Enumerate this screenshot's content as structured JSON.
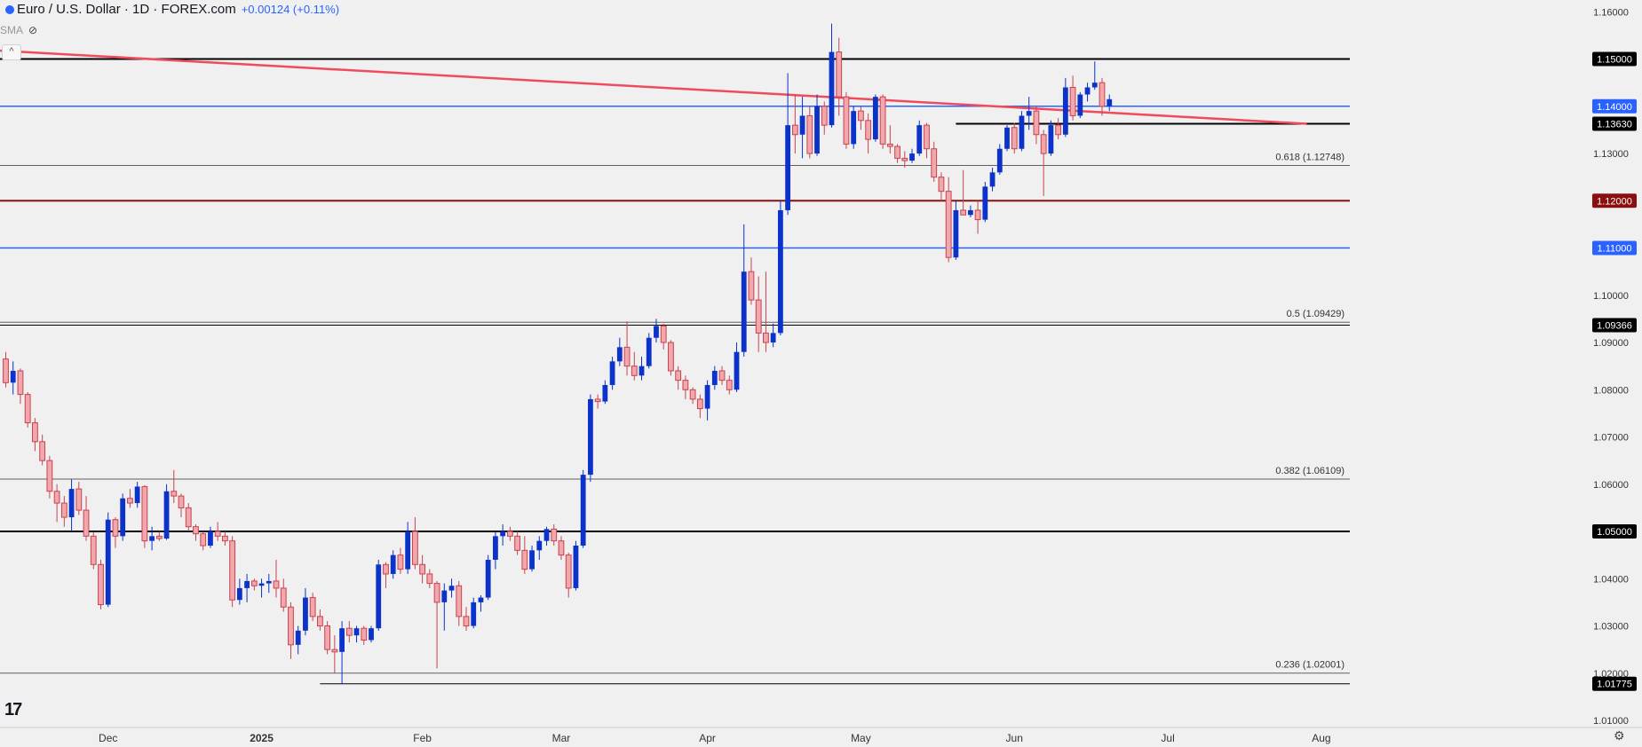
{
  "header": {
    "symbol": "Euro / U.S. Dollar · 1D · FOREX.com",
    "change": "+0.00124 (+0.11%)",
    "indicator": "SMA",
    "collapse_glyph": "^"
  },
  "colors": {
    "up": "#0b33c9",
    "down_fill": "#f2a7ad",
    "down_stroke": "#c8434f",
    "trendline": "#f04b5c",
    "black_level": "#000000",
    "blue_level": "#2962ff",
    "maroon_level": "#8b0f0f",
    "fib": "#606060",
    "background": "#f0f0f0"
  },
  "chart_data": {
    "type": "candlestick",
    "title": "Euro / U.S. Dollar · 1D · FOREX.com",
    "ylim": [
      1.0085,
      1.1625
    ],
    "x_ticks": [
      {
        "label": "Dec",
        "index": 14
      },
      {
        "label": "2025",
        "index": 35
      },
      {
        "label": "Feb",
        "index": 57
      },
      {
        "label": "Mar",
        "index": 76
      },
      {
        "label": "Apr",
        "index": 96
      },
      {
        "label": "May",
        "index": 117
      },
      {
        "label": "Jun",
        "index": 138
      },
      {
        "label": "Jul",
        "index": 159
      },
      {
        "label": "Aug",
        "index": 180
      }
    ],
    "y_ticks": [
      "1.16000",
      "1.13000",
      "1.10000",
      "1.09000",
      "1.08000",
      "1.07000",
      "1.06000",
      "1.04000",
      "1.03000",
      "1.02000",
      "1.01000"
    ],
    "y_tick_values": [
      1.16,
      1.13,
      1.1,
      1.09,
      1.08,
      1.07,
      1.06,
      1.04,
      1.03,
      1.02,
      1.01
    ],
    "levels": [
      {
        "value": 1.15,
        "label": "1.15000",
        "kind": "black",
        "start_index": -1
      },
      {
        "value": 1.14,
        "label": "1.14000",
        "kind": "blue",
        "start_index": -1
      },
      {
        "value": 1.1363,
        "label": "1.13630",
        "kind": "black",
        "start_index": 130
      },
      {
        "value": 1.12,
        "label": "1.12000",
        "kind": "maroon",
        "start_index": -1
      },
      {
        "value": 1.11,
        "label": "1.11000",
        "kind": "blue",
        "start_index": -1
      },
      {
        "value": 1.09366,
        "label": "1.09366",
        "kind": "black-thin",
        "start_index": -1
      },
      {
        "value": 1.05,
        "label": "1.05000",
        "kind": "black",
        "start_index": -1
      },
      {
        "value": 1.01775,
        "label": "1.01775",
        "kind": "black-thin",
        "start_index": 43
      }
    ],
    "fib_levels": [
      {
        "value": 1.12748,
        "label": "0.618 (1.12748)"
      },
      {
        "value": 1.09429,
        "label": "0.5 (1.09429)"
      },
      {
        "value": 1.06109,
        "label": "0.382 (1.06109)"
      },
      {
        "value": 1.02001,
        "label": "0.236 (1.02001)"
      }
    ],
    "trendline": {
      "start_index": -1,
      "start_value": 1.1518,
      "end_index": 178,
      "end_value": 1.1363
    },
    "candles": [
      [
        1.0865,
        1.088,
        1.0805,
        1.0815
      ],
      [
        1.0815,
        1.086,
        1.079,
        1.084
      ],
      [
        1.084,
        1.0845,
        1.077,
        1.079
      ],
      [
        1.079,
        1.0795,
        1.072,
        1.073
      ],
      [
        1.073,
        1.074,
        1.067,
        1.069
      ],
      [
        1.069,
        1.0705,
        1.064,
        1.065
      ],
      [
        1.065,
        1.066,
        1.057,
        1.0585
      ],
      [
        1.0585,
        1.06,
        1.052,
        1.056
      ],
      [
        1.056,
        1.0575,
        1.051,
        1.053
      ],
      [
        1.053,
        1.061,
        1.05,
        1.059
      ],
      [
        1.059,
        1.0605,
        1.0535,
        1.0545
      ],
      [
        1.0545,
        1.0575,
        1.048,
        1.049
      ],
      [
        1.049,
        1.05,
        1.042,
        1.043
      ],
      [
        1.043,
        1.044,
        1.0335,
        1.0345
      ],
      [
        1.0345,
        1.054,
        1.034,
        1.0525
      ],
      [
        1.0525,
        1.053,
        1.0465,
        1.049
      ],
      [
        1.049,
        1.058,
        1.048,
        1.057
      ],
      [
        1.057,
        1.059,
        1.055,
        1.056
      ],
      [
        1.056,
        1.0605,
        1.055,
        1.0595
      ],
      [
        1.0595,
        1.0598,
        1.0465,
        1.048
      ],
      [
        1.048,
        1.051,
        1.046,
        1.049
      ],
      [
        1.049,
        1.05,
        1.048,
        1.0485
      ],
      [
        1.0485,
        1.06,
        1.0482,
        1.0585
      ],
      [
        1.0585,
        1.063,
        1.056,
        1.0575
      ],
      [
        1.0575,
        1.058,
        1.053,
        1.055
      ],
      [
        1.055,
        1.056,
        1.05,
        1.051
      ],
      [
        1.051,
        1.0515,
        1.048,
        1.0495
      ],
      [
        1.0495,
        1.05,
        1.046,
        1.047
      ],
      [
        1.047,
        1.051,
        1.0465,
        1.05
      ],
      [
        1.05,
        1.052,
        1.048,
        1.049
      ],
      [
        1.049,
        1.05,
        1.047,
        1.048
      ],
      [
        1.048,
        1.049,
        1.034,
        1.0355
      ],
      [
        1.0355,
        1.04,
        1.0345,
        1.038
      ],
      [
        1.038,
        1.041,
        1.035,
        1.0395
      ],
      [
        1.0395,
        1.04,
        1.0375,
        1.0385
      ],
      [
        1.0385,
        1.04,
        1.036,
        1.039
      ],
      [
        1.039,
        1.041,
        1.037,
        1.0395
      ],
      [
        1.0395,
        1.044,
        1.036,
        1.038
      ],
      [
        1.038,
        1.04,
        1.033,
        1.034
      ],
      [
        1.034,
        1.035,
        1.023,
        1.026
      ],
      [
        1.026,
        1.03,
        1.024,
        1.029
      ],
      [
        1.029,
        1.038,
        1.028,
        1.036
      ],
      [
        1.036,
        1.037,
        1.031,
        1.032
      ],
      [
        1.032,
        1.0335,
        1.029,
        1.03
      ],
      [
        1.03,
        1.031,
        1.024,
        1.025
      ],
      [
        1.025,
        1.028,
        1.02,
        1.0245
      ],
      [
        1.0245,
        1.031,
        1.0178,
        1.0295
      ],
      [
        1.0295,
        1.031,
        1.0265,
        1.028
      ],
      [
        1.028,
        1.03,
        1.0265,
        1.0295
      ],
      [
        1.0295,
        1.03,
        1.026,
        1.027
      ],
      [
        1.027,
        1.03,
        1.0265,
        1.0295
      ],
      [
        1.0295,
        1.044,
        1.029,
        1.043
      ],
      [
        1.043,
        1.0435,
        1.038,
        1.041
      ],
      [
        1.041,
        1.046,
        1.04,
        1.045
      ],
      [
        1.045,
        1.0465,
        1.041,
        1.042
      ],
      [
        1.042,
        1.052,
        1.041,
        1.05
      ],
      [
        1.05,
        1.053,
        1.042,
        1.043
      ],
      [
        1.043,
        1.045,
        1.039,
        1.041
      ],
      [
        1.041,
        1.042,
        1.038,
        1.039
      ],
      [
        1.039,
        1.0395,
        1.021,
        1.035
      ],
      [
        1.035,
        1.039,
        1.029,
        1.0375
      ],
      [
        1.0375,
        1.04,
        1.036,
        1.0385
      ],
      [
        1.0385,
        1.0395,
        1.03,
        1.032
      ],
      [
        1.032,
        1.034,
        1.029,
        1.03
      ],
      [
        1.03,
        1.036,
        1.0295,
        1.035
      ],
      [
        1.035,
        1.0365,
        1.033,
        1.036
      ],
      [
        1.036,
        1.045,
        1.0355,
        1.044
      ],
      [
        1.044,
        1.05,
        1.042,
        1.049
      ],
      [
        1.049,
        1.0515,
        1.047,
        1.05
      ],
      [
        1.05,
        1.051,
        1.048,
        1.049
      ],
      [
        1.049,
        1.05,
        1.045,
        1.046
      ],
      [
        1.046,
        1.049,
        1.041,
        1.042
      ],
      [
        1.042,
        1.047,
        1.0415,
        1.046
      ],
      [
        1.046,
        1.049,
        1.044,
        1.048
      ],
      [
        1.048,
        1.051,
        1.047,
        1.0505
      ],
      [
        1.0505,
        1.0515,
        1.047,
        1.048
      ],
      [
        1.048,
        1.049,
        1.044,
        1.045
      ],
      [
        1.045,
        1.0455,
        1.036,
        1.038
      ],
      [
        1.038,
        1.048,
        1.0375,
        1.047
      ],
      [
        1.047,
        1.063,
        1.0465,
        1.062
      ],
      [
        1.062,
        1.079,
        1.0605,
        1.078
      ],
      [
        1.078,
        1.079,
        1.076,
        1.0775
      ],
      [
        1.0775,
        1.082,
        1.077,
        1.081
      ],
      [
        1.081,
        1.087,
        1.08,
        1.086
      ],
      [
        1.086,
        1.091,
        1.085,
        1.089
      ],
      [
        1.089,
        1.0945,
        1.083,
        1.085
      ],
      [
        1.085,
        1.088,
        1.082,
        1.083
      ],
      [
        1.083,
        1.087,
        1.082,
        1.085
      ],
      [
        1.085,
        1.092,
        1.0845,
        1.091
      ],
      [
        1.091,
        1.095,
        1.09,
        1.0935
      ],
      [
        1.0935,
        1.094,
        1.0885,
        1.09
      ],
      [
        1.09,
        1.0905,
        1.083,
        1.084
      ],
      [
        1.084,
        1.085,
        1.08,
        1.082
      ],
      [
        1.082,
        1.083,
        1.078,
        1.08
      ],
      [
        1.08,
        1.0805,
        1.077,
        1.078
      ],
      [
        1.078,
        1.079,
        1.074,
        1.076
      ],
      [
        1.076,
        1.082,
        1.0735,
        1.081
      ],
      [
        1.081,
        1.085,
        1.08,
        1.084
      ],
      [
        1.084,
        1.085,
        1.081,
        1.082
      ],
      [
        1.082,
        1.083,
        1.079,
        1.08
      ],
      [
        1.08,
        1.09,
        1.0795,
        1.088
      ],
      [
        1.088,
        1.115,
        1.087,
        1.105
      ],
      [
        1.105,
        1.108,
        1.098,
        1.099
      ],
      [
        1.099,
        1.104,
        1.088,
        1.092
      ],
      [
        1.092,
        1.105,
        1.088,
        1.09
      ],
      [
        1.09,
        1.094,
        1.089,
        1.092
      ],
      [
        1.092,
        1.12,
        1.0915,
        1.118
      ],
      [
        1.118,
        1.147,
        1.117,
        1.136
      ],
      [
        1.136,
        1.1425,
        1.13,
        1.134
      ],
      [
        1.134,
        1.142,
        1.129,
        1.138
      ],
      [
        1.138,
        1.14,
        1.129,
        1.13
      ],
      [
        1.13,
        1.1425,
        1.1295,
        1.14
      ],
      [
        1.14,
        1.141,
        1.134,
        1.136
      ],
      [
        1.136,
        1.1575,
        1.1355,
        1.1515
      ],
      [
        1.1515,
        1.1545,
        1.138,
        1.142
      ],
      [
        1.142,
        1.143,
        1.131,
        1.132
      ],
      [
        1.132,
        1.14,
        1.131,
        1.139
      ],
      [
        1.139,
        1.14,
        1.135,
        1.137
      ],
      [
        1.137,
        1.1385,
        1.13,
        1.133
      ],
      [
        1.133,
        1.1425,
        1.1325,
        1.142
      ],
      [
        1.142,
        1.1425,
        1.131,
        1.132
      ],
      [
        1.132,
        1.136,
        1.13,
        1.1315
      ],
      [
        1.1315,
        1.132,
        1.128,
        1.129
      ],
      [
        1.129,
        1.1305,
        1.127,
        1.1285
      ],
      [
        1.1285,
        1.131,
        1.128,
        1.13
      ],
      [
        1.13,
        1.137,
        1.1295,
        1.136
      ],
      [
        1.136,
        1.1365,
        1.129,
        1.131
      ],
      [
        1.131,
        1.1325,
        1.124,
        1.125
      ],
      [
        1.125,
        1.126,
        1.12,
        1.122
      ],
      [
        1.122,
        1.125,
        1.107,
        1.108
      ],
      [
        1.108,
        1.12,
        1.1075,
        1.118
      ],
      [
        1.118,
        1.1265,
        1.117,
        1.117
      ],
      [
        1.117,
        1.119,
        1.1165,
        1.118
      ],
      [
        1.118,
        1.12,
        1.113,
        1.116
      ],
      [
        1.116,
        1.124,
        1.1155,
        1.123
      ],
      [
        1.123,
        1.127,
        1.122,
        1.126
      ],
      [
        1.126,
        1.132,
        1.1255,
        1.131
      ],
      [
        1.131,
        1.136,
        1.1305,
        1.1355
      ],
      [
        1.1355,
        1.1365,
        1.13,
        1.131
      ],
      [
        1.131,
        1.139,
        1.1305,
        1.138
      ],
      [
        1.138,
        1.142,
        1.135,
        1.139
      ],
      [
        1.139,
        1.14,
        1.132,
        1.134
      ],
      [
        1.134,
        1.135,
        1.121,
        1.13
      ],
      [
        1.13,
        1.137,
        1.1295,
        1.136
      ],
      [
        1.136,
        1.1375,
        1.133,
        1.134
      ],
      [
        1.134,
        1.146,
        1.1335,
        1.144
      ],
      [
        1.144,
        1.1465,
        1.137,
        1.138
      ],
      [
        1.138,
        1.143,
        1.1375,
        1.1425
      ],
      [
        1.1425,
        1.145,
        1.141,
        1.144
      ],
      [
        1.144,
        1.1495,
        1.1435,
        1.145
      ],
      [
        1.145,
        1.146,
        1.138,
        1.14
      ],
      [
        1.14,
        1.1425,
        1.139,
        1.1415
      ]
    ]
  }
}
